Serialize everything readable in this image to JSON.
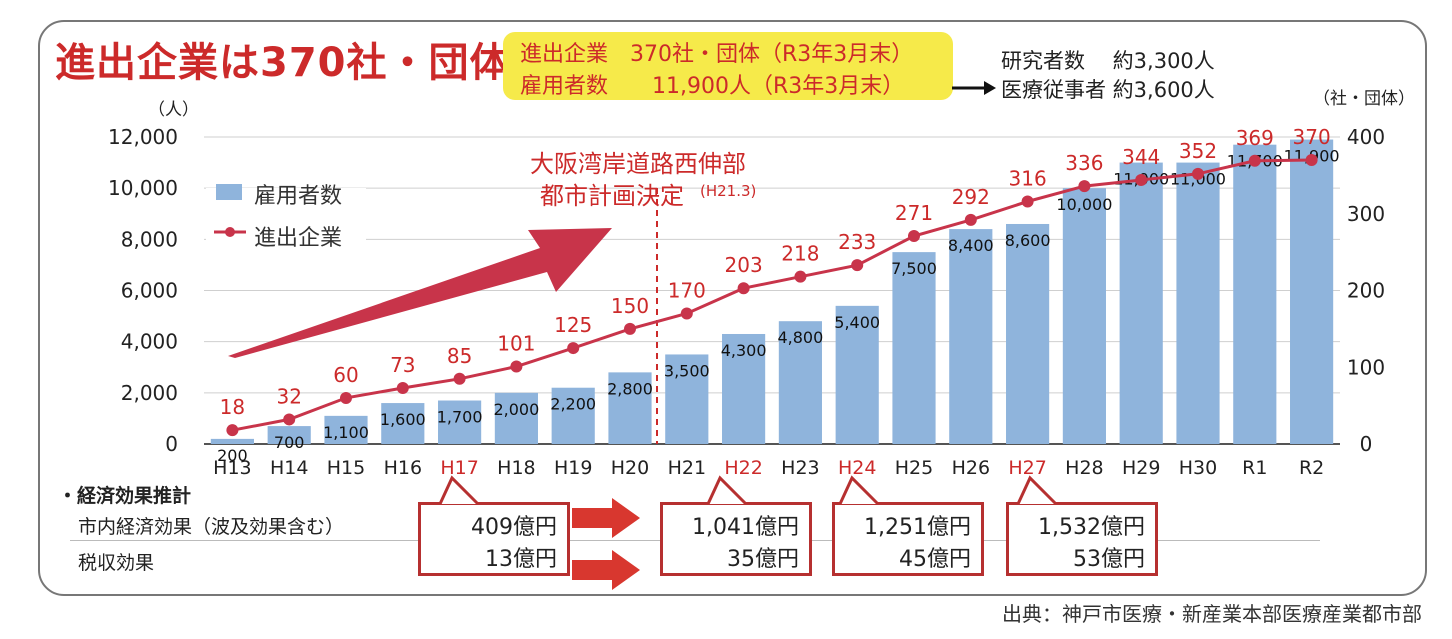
{
  "title": "進出企業は370社・団体",
  "highlight": {
    "line1": "進出企業　370社・団体（R3年3月末）",
    "line2": "雇用者数　　11,900人（R3年3月末）"
  },
  "side_note": {
    "line1": "研究者数　 約3,300人",
    "line2": "医療従事者  約3,600人"
  },
  "axis_units": {
    "left": "（人）",
    "right": "（社・団体）"
  },
  "annotation": {
    "line1": "大阪湾岸道路西伸部",
    "line2": "都市計画決定",
    "date": "(H21.3)"
  },
  "legend": {
    "bar": "雇用者数",
    "line": "進出企業"
  },
  "colors": {
    "bar": "#8fb4dc",
    "line": "#c8344a",
    "accent": "#cc2a2a",
    "highlight": "#f6ea4a"
  },
  "chart_data": {
    "type": "bar",
    "categories": [
      "H13",
      "H14",
      "H15",
      "H16",
      "H17",
      "H18",
      "H19",
      "H20",
      "H21",
      "H22",
      "H23",
      "H24",
      "H25",
      "H26",
      "H27",
      "H28",
      "H29",
      "H30",
      "R1",
      "R2"
    ],
    "highlight_categories": [
      "H17",
      "H22",
      "H24",
      "H27"
    ],
    "series": [
      {
        "name": "雇用者数",
        "axis": "left",
        "type": "bar",
        "values": [
          200,
          700,
          1100,
          1600,
          1700,
          2000,
          2200,
          2800,
          3500,
          4300,
          4800,
          5400,
          7500,
          8400,
          8600,
          10000,
          11000,
          11000,
          11700,
          11900
        ],
        "labels": [
          "200",
          "700",
          "1,100",
          "1,600",
          "1,700",
          "2,000",
          "2,200",
          "2,800",
          "3,500",
          "4,300",
          "4,800",
          "5,400",
          "7,500",
          "8,400",
          "8,600",
          "10,000",
          "11,000",
          "11,000",
          "11,700",
          "11,900"
        ]
      },
      {
        "name": "進出企業",
        "axis": "right",
        "type": "line",
        "values": [
          18,
          32,
          60,
          73,
          85,
          101,
          125,
          150,
          170,
          203,
          218,
          233,
          271,
          292,
          316,
          336,
          344,
          352,
          369,
          370
        ]
      }
    ],
    "y_left": {
      "lim": [
        0,
        12000
      ],
      "ticks": [
        "0",
        "2,000",
        "4,000",
        "6,000",
        "8,000",
        "10,000",
        "12,000"
      ]
    },
    "y_right": {
      "lim": [
        0,
        400
      ],
      "ticks": [
        "0",
        "100",
        "200",
        "300",
        "400"
      ]
    }
  },
  "economic": {
    "title": "・経済効果推計",
    "row1_label": "市内経済効果（波及効果含む）",
    "row2_label": "税収効果",
    "boxes": [
      {
        "anchor": "H17",
        "effect": "409億円",
        "tax": "13億円"
      },
      {
        "anchor": "H22",
        "effect": "1,041億円",
        "tax": "35億円"
      },
      {
        "anchor": "H24",
        "effect": "1,251億円",
        "tax": "45億円"
      },
      {
        "anchor": "H27",
        "effect": "1,532億円",
        "tax": "53億円"
      }
    ]
  },
  "source": "出典：神戸市医療・新産業本部医療産業都市部"
}
